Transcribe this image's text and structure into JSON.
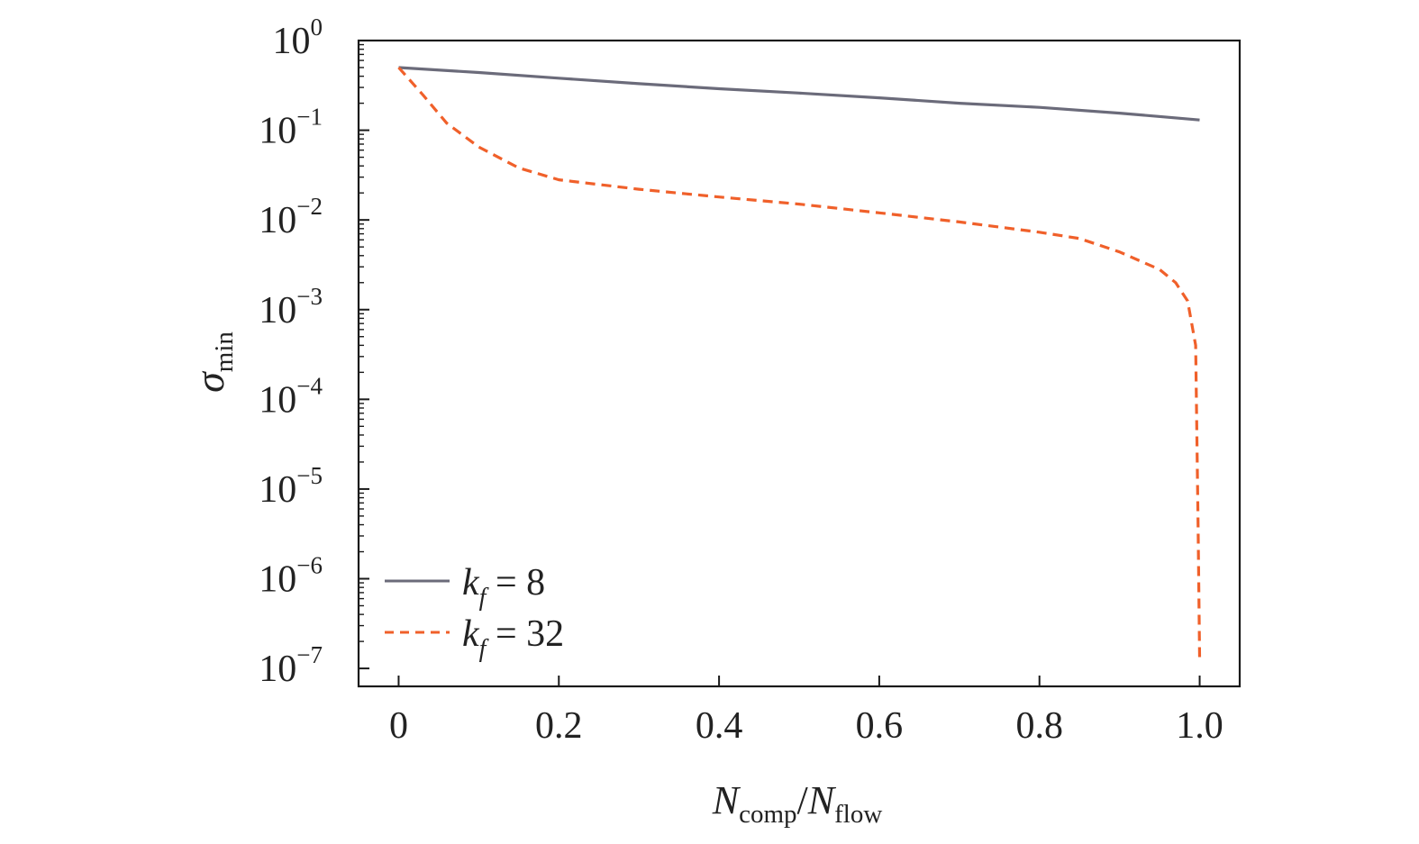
{
  "chart_data": {
    "type": "line",
    "xlabel": {
      "main": "N",
      "sub": "comp",
      "sep": "/",
      "main2": "N",
      "sub2": "flow"
    },
    "ylabel": {
      "main": "σ",
      "sub": "min"
    },
    "xlim": [
      -0.05,
      1.05
    ],
    "ylim_log10": [
      -7.2,
      0
    ],
    "yscale": "log",
    "grid": false,
    "legend_position": "lower-left",
    "x_ticks": [
      {
        "value": 0,
        "label": "0"
      },
      {
        "value": 0.2,
        "label": "0.2"
      },
      {
        "value": 0.4,
        "label": "0.4"
      },
      {
        "value": 0.6,
        "label": "0.6"
      },
      {
        "value": 0.8,
        "label": "0.8"
      },
      {
        "value": 1.0,
        "label": "1.0"
      }
    ],
    "y_ticks": [
      {
        "exp": 0,
        "base": "10",
        "sup": "0"
      },
      {
        "exp": -1,
        "base": "10",
        "sup": "−1"
      },
      {
        "exp": -2,
        "base": "10",
        "sup": "−2"
      },
      {
        "exp": -3,
        "base": "10",
        "sup": "−3"
      },
      {
        "exp": -4,
        "base": "10",
        "sup": "−4"
      },
      {
        "exp": -5,
        "base": "10",
        "sup": "−5"
      },
      {
        "exp": -6,
        "base": "10",
        "sup": "−6"
      },
      {
        "exp": -7,
        "base": "10",
        "sup": "−7"
      }
    ],
    "series": [
      {
        "name": {
          "k": "k",
          "sub": "f",
          "rest": " = 8"
        },
        "color": "#6b6b7a",
        "dashed": false,
        "x": [
          0,
          0.1,
          0.2,
          0.3,
          0.4,
          0.5,
          0.6,
          0.7,
          0.8,
          0.9,
          1.0
        ],
        "y": [
          0.5,
          0.44,
          0.38,
          0.33,
          0.29,
          0.26,
          0.23,
          0.2,
          0.18,
          0.155,
          0.13
        ]
      },
      {
        "name": {
          "k": "k",
          "sub": "f",
          "rest": " = 32"
        },
        "color": "#f0602a",
        "dashed": true,
        "x": [
          0,
          0.03,
          0.06,
          0.1,
          0.15,
          0.2,
          0.3,
          0.4,
          0.5,
          0.6,
          0.7,
          0.8,
          0.85,
          0.9,
          0.95,
          0.97,
          0.985,
          0.995,
          0.998,
          1.0
        ],
        "y": [
          0.5,
          0.25,
          0.12,
          0.065,
          0.038,
          0.028,
          0.022,
          0.018,
          0.015,
          0.012,
          0.0095,
          0.0073,
          0.0062,
          0.0044,
          0.0028,
          0.002,
          0.00125,
          0.0004,
          4e-06,
          1.3e-07
        ]
      }
    ]
  }
}
